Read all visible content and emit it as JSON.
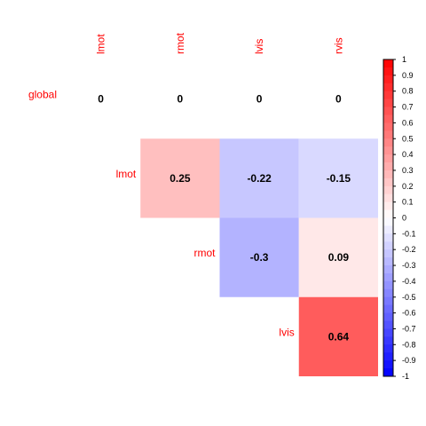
{
  "chart_data": {
    "type": "heatmap",
    "columns": [
      "lmot",
      "rmot",
      "lvis",
      "rvis"
    ],
    "rows": [
      "global",
      "lmot",
      "rmot",
      "lvis"
    ],
    "cells": [
      {
        "row": "global",
        "col": "lmot",
        "value": 0,
        "label": "0"
      },
      {
        "row": "global",
        "col": "rmot",
        "value": 0,
        "label": "0"
      },
      {
        "row": "global",
        "col": "lvis",
        "value": 0,
        "label": "0"
      },
      {
        "row": "global",
        "col": "rvis",
        "value": 0,
        "label": "0"
      },
      {
        "row": "lmot",
        "col": "rmot",
        "value": 0.25,
        "label": "0.25"
      },
      {
        "row": "lmot",
        "col": "lvis",
        "value": -0.22,
        "label": "-0.22"
      },
      {
        "row": "lmot",
        "col": "rvis",
        "value": -0.15,
        "label": "-0.15"
      },
      {
        "row": "rmot",
        "col": "lvis",
        "value": -0.3,
        "label": "-0.3"
      },
      {
        "row": "rmot",
        "col": "rvis",
        "value": 0.09,
        "label": "0.09"
      },
      {
        "row": "lvis",
        "col": "rvis",
        "value": 0.64,
        "label": "0.64"
      }
    ],
    "colorbar": {
      "range": [
        -1,
        1
      ],
      "ticks": [
        "1",
        "0.9",
        "0.8",
        "0.7",
        "0.6",
        "0.5",
        "0.4",
        "0.3",
        "0.2",
        "0.1",
        "0",
        "-0.1",
        "-0.2",
        "-0.3",
        "-0.4",
        "-0.5",
        "-0.6",
        "-0.7",
        "-0.8",
        "-0.9",
        "-1"
      ],
      "colors": {
        "negative": "#0000ff",
        "zero": "#ffffff",
        "positive": "#ff0000"
      },
      "position": "right"
    },
    "label_color": "#ff0000"
  }
}
